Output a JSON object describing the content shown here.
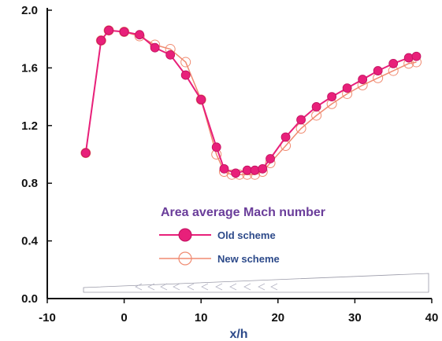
{
  "chart_data": {
    "type": "line",
    "title": "",
    "xlabel": "x/h",
    "ylabel": "",
    "xlim": [
      -10,
      40
    ],
    "ylim": [
      0.0,
      2.0
    ],
    "xticks": [
      -10,
      0,
      10,
      20,
      30,
      40
    ],
    "yticks": [
      "0.0",
      "0.4",
      "0.8",
      "1.2",
      "1.6",
      "2.0"
    ],
    "x_tick_labels": [
      "-10",
      "0",
      "10",
      "20",
      "30",
      "40"
    ],
    "annotation": "Area average Mach number",
    "legend_position": "center-left",
    "series": [
      {
        "name": "Old scheme",
        "color": "#e8207a",
        "marker": "filled-circle",
        "x": [
          -5,
          -3,
          -2,
          0,
          2,
          4,
          6,
          8,
          10,
          12,
          13,
          14.5,
          16,
          17,
          18,
          19,
          21,
          23,
          25,
          27,
          29,
          31,
          33,
          35,
          37,
          38
        ],
        "y": [
          1.01,
          1.79,
          1.86,
          1.85,
          1.83,
          1.74,
          1.69,
          1.55,
          1.38,
          1.05,
          0.9,
          0.87,
          0.89,
          0.89,
          0.9,
          0.97,
          1.12,
          1.24,
          1.33,
          1.4,
          1.46,
          1.52,
          1.58,
          1.63,
          1.67,
          1.68
        ]
      },
      {
        "name": "New scheme",
        "color": "#f08a70",
        "marker": "open-circle",
        "x": [
          -5,
          -3,
          -2,
          0,
          2,
          4,
          6,
          8,
          10,
          12,
          13,
          14,
          15,
          16,
          17,
          18,
          19,
          21,
          23,
          25,
          27,
          29,
          31,
          33,
          35,
          37,
          38
        ],
        "y": [
          1.01,
          1.79,
          1.86,
          1.85,
          1.82,
          1.76,
          1.73,
          1.64,
          1.38,
          1.0,
          0.88,
          0.86,
          0.86,
          0.86,
          0.86,
          0.88,
          0.94,
          1.06,
          1.18,
          1.27,
          1.35,
          1.42,
          1.48,
          1.53,
          1.58,
          1.63,
          1.64
        ]
      }
    ]
  }
}
